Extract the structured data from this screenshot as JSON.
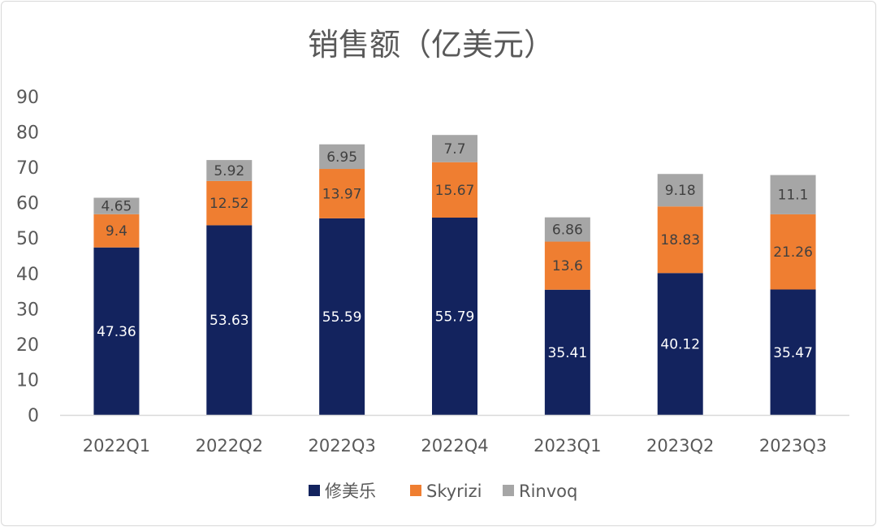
{
  "chart_data": {
    "type": "bar",
    "stacked": true,
    "title": "销售额（亿美元）",
    "xlabel": "",
    "ylabel": "",
    "ylim": [
      0,
      90
    ],
    "yticks": [
      0,
      10,
      20,
      30,
      40,
      50,
      60,
      70,
      80,
      90
    ],
    "grid": false,
    "legend_position": "bottom",
    "categories": [
      "2022Q1",
      "2022Q2",
      "2022Q3",
      "2022Q4",
      "2023Q1",
      "2023Q2",
      "2023Q3"
    ],
    "series": [
      {
        "name": "修美乐",
        "color": "#13235e",
        "label_color": "#ffffff",
        "values": [
          47.36,
          53.63,
          55.59,
          55.79,
          35.41,
          40.12,
          35.47
        ]
      },
      {
        "name": "Skyrizi",
        "color": "#ef7e31",
        "label_color": "#404040",
        "values": [
          9.4,
          12.52,
          13.97,
          15.67,
          13.6,
          18.83,
          21.26
        ]
      },
      {
        "name": "Rinvoq",
        "color": "#a6a6a6",
        "label_color": "#404040",
        "values": [
          4.65,
          5.92,
          6.95,
          7.7,
          6.86,
          9.18,
          11.1
        ]
      }
    ]
  }
}
